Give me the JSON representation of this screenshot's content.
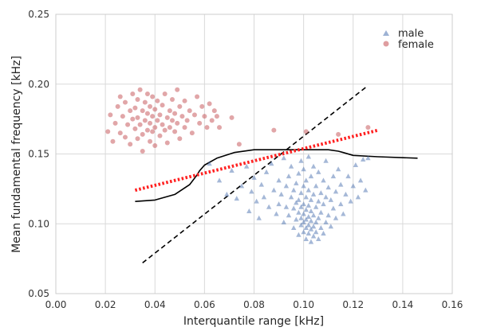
{
  "chart_data": {
    "type": "scatter",
    "xlabel": "Interquantile range [kHz]",
    "ylabel": "Mean fundamental frequency [kHz]",
    "xlim": [
      0.0,
      0.16
    ],
    "ylim": [
      0.05,
      0.25
    ],
    "xticks": [
      "0.00",
      "0.02",
      "0.04",
      "0.06",
      "0.08",
      "0.10",
      "0.12",
      "0.14",
      "0.16"
    ],
    "yticks": [
      "0.05",
      "0.10",
      "0.15",
      "0.20",
      "0.25"
    ],
    "grid": true,
    "legend_position": "top-right",
    "colors": {
      "male": "#4c72b0",
      "female": "#c44e52",
      "regression": "#ff2020",
      "boundary": "#000000",
      "background": "#ffffff",
      "grid": "#d9d9d9"
    },
    "series": [
      {
        "name": "male",
        "marker": "triangle",
        "points": [
          [
            0.062,
            0.143
          ],
          [
            0.066,
            0.131
          ],
          [
            0.069,
            0.121
          ],
          [
            0.071,
            0.138
          ],
          [
            0.073,
            0.118
          ],
          [
            0.075,
            0.127
          ],
          [
            0.077,
            0.141
          ],
          [
            0.078,
            0.109
          ],
          [
            0.079,
            0.123
          ],
          [
            0.08,
            0.133
          ],
          [
            0.081,
            0.116
          ],
          [
            0.082,
            0.104
          ],
          [
            0.083,
            0.128
          ],
          [
            0.084,
            0.119
          ],
          [
            0.085,
            0.137
          ],
          [
            0.086,
            0.112
          ],
          [
            0.087,
            0.143
          ],
          [
            0.088,
            0.124
          ],
          [
            0.089,
            0.107
          ],
          [
            0.09,
            0.131
          ],
          [
            0.09,
            0.114
          ],
          [
            0.091,
            0.121
          ],
          [
            0.092,
            0.147
          ],
          [
            0.092,
            0.101
          ],
          [
            0.093,
            0.127
          ],
          [
            0.093,
            0.112
          ],
          [
            0.094,
            0.134
          ],
          [
            0.094,
            0.106
          ],
          [
            0.095,
            0.119
          ],
          [
            0.095,
            0.141
          ],
          [
            0.096,
            0.097
          ],
          [
            0.096,
            0.111
          ],
          [
            0.096,
            0.124
          ],
          [
            0.097,
            0.103
          ],
          [
            0.097,
            0.115
          ],
          [
            0.097,
            0.129
          ],
          [
            0.098,
            0.092
          ],
          [
            0.098,
            0.108
          ],
          [
            0.098,
            0.117
          ],
          [
            0.098,
            0.136
          ],
          [
            0.099,
            0.099
          ],
          [
            0.099,
            0.104
          ],
          [
            0.099,
            0.112
          ],
          [
            0.099,
            0.122
          ],
          [
            0.099,
            0.145
          ],
          [
            0.1,
            0.094
          ],
          [
            0.1,
            0.101
          ],
          [
            0.1,
            0.107
          ],
          [
            0.1,
            0.114
          ],
          [
            0.1,
            0.127
          ],
          [
            0.1,
            0.139
          ],
          [
            0.101,
            0.089
          ],
          [
            0.101,
            0.097
          ],
          [
            0.101,
            0.103
          ],
          [
            0.101,
            0.11
          ],
          [
            0.101,
            0.119
          ],
          [
            0.101,
            0.131
          ],
          [
            0.102,
            0.093
          ],
          [
            0.102,
            0.099
          ],
          [
            0.102,
            0.105
          ],
          [
            0.102,
            0.113
          ],
          [
            0.102,
            0.124
          ],
          [
            0.102,
            0.148
          ],
          [
            0.103,
            0.087
          ],
          [
            0.103,
            0.096
          ],
          [
            0.103,
            0.102
          ],
          [
            0.103,
            0.109
          ],
          [
            0.103,
            0.117
          ],
          [
            0.103,
            0.134
          ],
          [
            0.104,
            0.091
          ],
          [
            0.104,
            0.098
          ],
          [
            0.104,
            0.106
          ],
          [
            0.104,
            0.121
          ],
          [
            0.104,
            0.141
          ],
          [
            0.105,
            0.094
          ],
          [
            0.105,
            0.101
          ],
          [
            0.105,
            0.112
          ],
          [
            0.105,
            0.127
          ],
          [
            0.106,
            0.089
          ],
          [
            0.106,
            0.104
          ],
          [
            0.106,
            0.116
          ],
          [
            0.106,
            0.137
          ],
          [
            0.107,
            0.097
          ],
          [
            0.107,
            0.108
          ],
          [
            0.107,
            0.122
          ],
          [
            0.108,
            0.093
          ],
          [
            0.108,
            0.114
          ],
          [
            0.108,
            0.131
          ],
          [
            0.109,
            0.101
          ],
          [
            0.109,
            0.119
          ],
          [
            0.109,
            0.145
          ],
          [
            0.11,
            0.106
          ],
          [
            0.11,
            0.126
          ],
          [
            0.111,
            0.098
          ],
          [
            0.111,
            0.117
          ],
          [
            0.112,
            0.111
          ],
          [
            0.112,
            0.134
          ],
          [
            0.113,
            0.104
          ],
          [
            0.113,
            0.123
          ],
          [
            0.114,
            0.139
          ],
          [
            0.115,
            0.114
          ],
          [
            0.115,
            0.128
          ],
          [
            0.116,
            0.107
          ],
          [
            0.117,
            0.121
          ],
          [
            0.118,
            0.134
          ],
          [
            0.119,
            0.116
          ],
          [
            0.12,
            0.127
          ],
          [
            0.121,
            0.142
          ],
          [
            0.122,
            0.119
          ],
          [
            0.123,
            0.131
          ],
          [
            0.124,
            0.146
          ],
          [
            0.125,
            0.124
          ],
          [
            0.126,
            0.147
          ]
        ]
      },
      {
        "name": "female",
        "marker": "circle",
        "points": [
          [
            0.021,
            0.166
          ],
          [
            0.022,
            0.178
          ],
          [
            0.023,
            0.159
          ],
          [
            0.024,
            0.172
          ],
          [
            0.025,
            0.184
          ],
          [
            0.026,
            0.165
          ],
          [
            0.026,
            0.191
          ],
          [
            0.027,
            0.177
          ],
          [
            0.028,
            0.162
          ],
          [
            0.028,
            0.187
          ],
          [
            0.029,
            0.171
          ],
          [
            0.03,
            0.181
          ],
          [
            0.03,
            0.157
          ],
          [
            0.031,
            0.175
          ],
          [
            0.031,
            0.193
          ],
          [
            0.032,
            0.168
          ],
          [
            0.032,
            0.183
          ],
          [
            0.033,
            0.161
          ],
          [
            0.033,
            0.176
          ],
          [
            0.033,
            0.189
          ],
          [
            0.034,
            0.171
          ],
          [
            0.034,
            0.196
          ],
          [
            0.035,
            0.164
          ],
          [
            0.035,
            0.181
          ],
          [
            0.035,
            0.152
          ],
          [
            0.036,
            0.174
          ],
          [
            0.036,
            0.187
          ],
          [
            0.037,
            0.167
          ],
          [
            0.037,
            0.179
          ],
          [
            0.037,
            0.193
          ],
          [
            0.038,
            0.159
          ],
          [
            0.038,
            0.172
          ],
          [
            0.038,
            0.184
          ],
          [
            0.039,
            0.166
          ],
          [
            0.039,
            0.177
          ],
          [
            0.039,
            0.191
          ],
          [
            0.04,
            0.169
          ],
          [
            0.04,
            0.182
          ],
          [
            0.04,
            0.156
          ],
          [
            0.041,
            0.174
          ],
          [
            0.041,
            0.188
          ],
          [
            0.042,
            0.163
          ],
          [
            0.042,
            0.178
          ],
          [
            0.043,
            0.171
          ],
          [
            0.043,
            0.185
          ],
          [
            0.044,
            0.167
          ],
          [
            0.044,
            0.193
          ],
          [
            0.045,
            0.176
          ],
          [
            0.045,
            0.158
          ],
          [
            0.046,
            0.181
          ],
          [
            0.046,
            0.169
          ],
          [
            0.047,
            0.174
          ],
          [
            0.047,
            0.189
          ],
          [
            0.048,
            0.166
          ],
          [
            0.048,
            0.179
          ],
          [
            0.049,
            0.172
          ],
          [
            0.049,
            0.196
          ],
          [
            0.05,
            0.184
          ],
          [
            0.05,
            0.161
          ],
          [
            0.051,
            0.177
          ],
          [
            0.052,
            0.169
          ],
          [
            0.052,
            0.188
          ],
          [
            0.053,
            0.174
          ],
          [
            0.054,
            0.181
          ],
          [
            0.055,
            0.165
          ],
          [
            0.056,
            0.178
          ],
          [
            0.057,
            0.191
          ],
          [
            0.058,
            0.172
          ],
          [
            0.059,
            0.184
          ],
          [
            0.06,
            0.177
          ],
          [
            0.061,
            0.169
          ],
          [
            0.062,
            0.186
          ],
          [
            0.063,
            0.174
          ],
          [
            0.064,
            0.181
          ],
          [
            0.065,
            0.177
          ],
          [
            0.066,
            0.169
          ],
          [
            0.071,
            0.176
          ],
          [
            0.074,
            0.157
          ],
          [
            0.088,
            0.167
          ],
          [
            0.101,
            0.166
          ],
          [
            0.114,
            0.164
          ],
          [
            0.126,
            0.169
          ]
        ]
      }
    ],
    "lines": [
      {
        "role": "decision-boundary-quadratic",
        "style": "solid",
        "points": [
          [
            0.032,
            0.116
          ],
          [
            0.04,
            0.117
          ],
          [
            0.048,
            0.121
          ],
          [
            0.054,
            0.128
          ],
          [
            0.057,
            0.135
          ],
          [
            0.058,
            0.138
          ],
          [
            0.06,
            0.142
          ],
          [
            0.065,
            0.147
          ],
          [
            0.072,
            0.151
          ],
          [
            0.08,
            0.153
          ],
          [
            0.09,
            0.153
          ],
          [
            0.1,
            0.153
          ],
          [
            0.11,
            0.153
          ],
          [
            0.114,
            0.152
          ],
          [
            0.116,
            0.151
          ],
          [
            0.12,
            0.149
          ],
          [
            0.13,
            0.148
          ],
          [
            0.146,
            0.147
          ]
        ]
      },
      {
        "role": "decision-boundary-linear",
        "style": "dashed",
        "points": [
          [
            0.035,
            0.072
          ],
          [
            0.126,
            0.199
          ]
        ]
      },
      {
        "role": "regression-fit",
        "style": "dotted",
        "points": [
          [
            0.032,
            0.124
          ],
          [
            0.13,
            0.167
          ]
        ]
      }
    ]
  }
}
